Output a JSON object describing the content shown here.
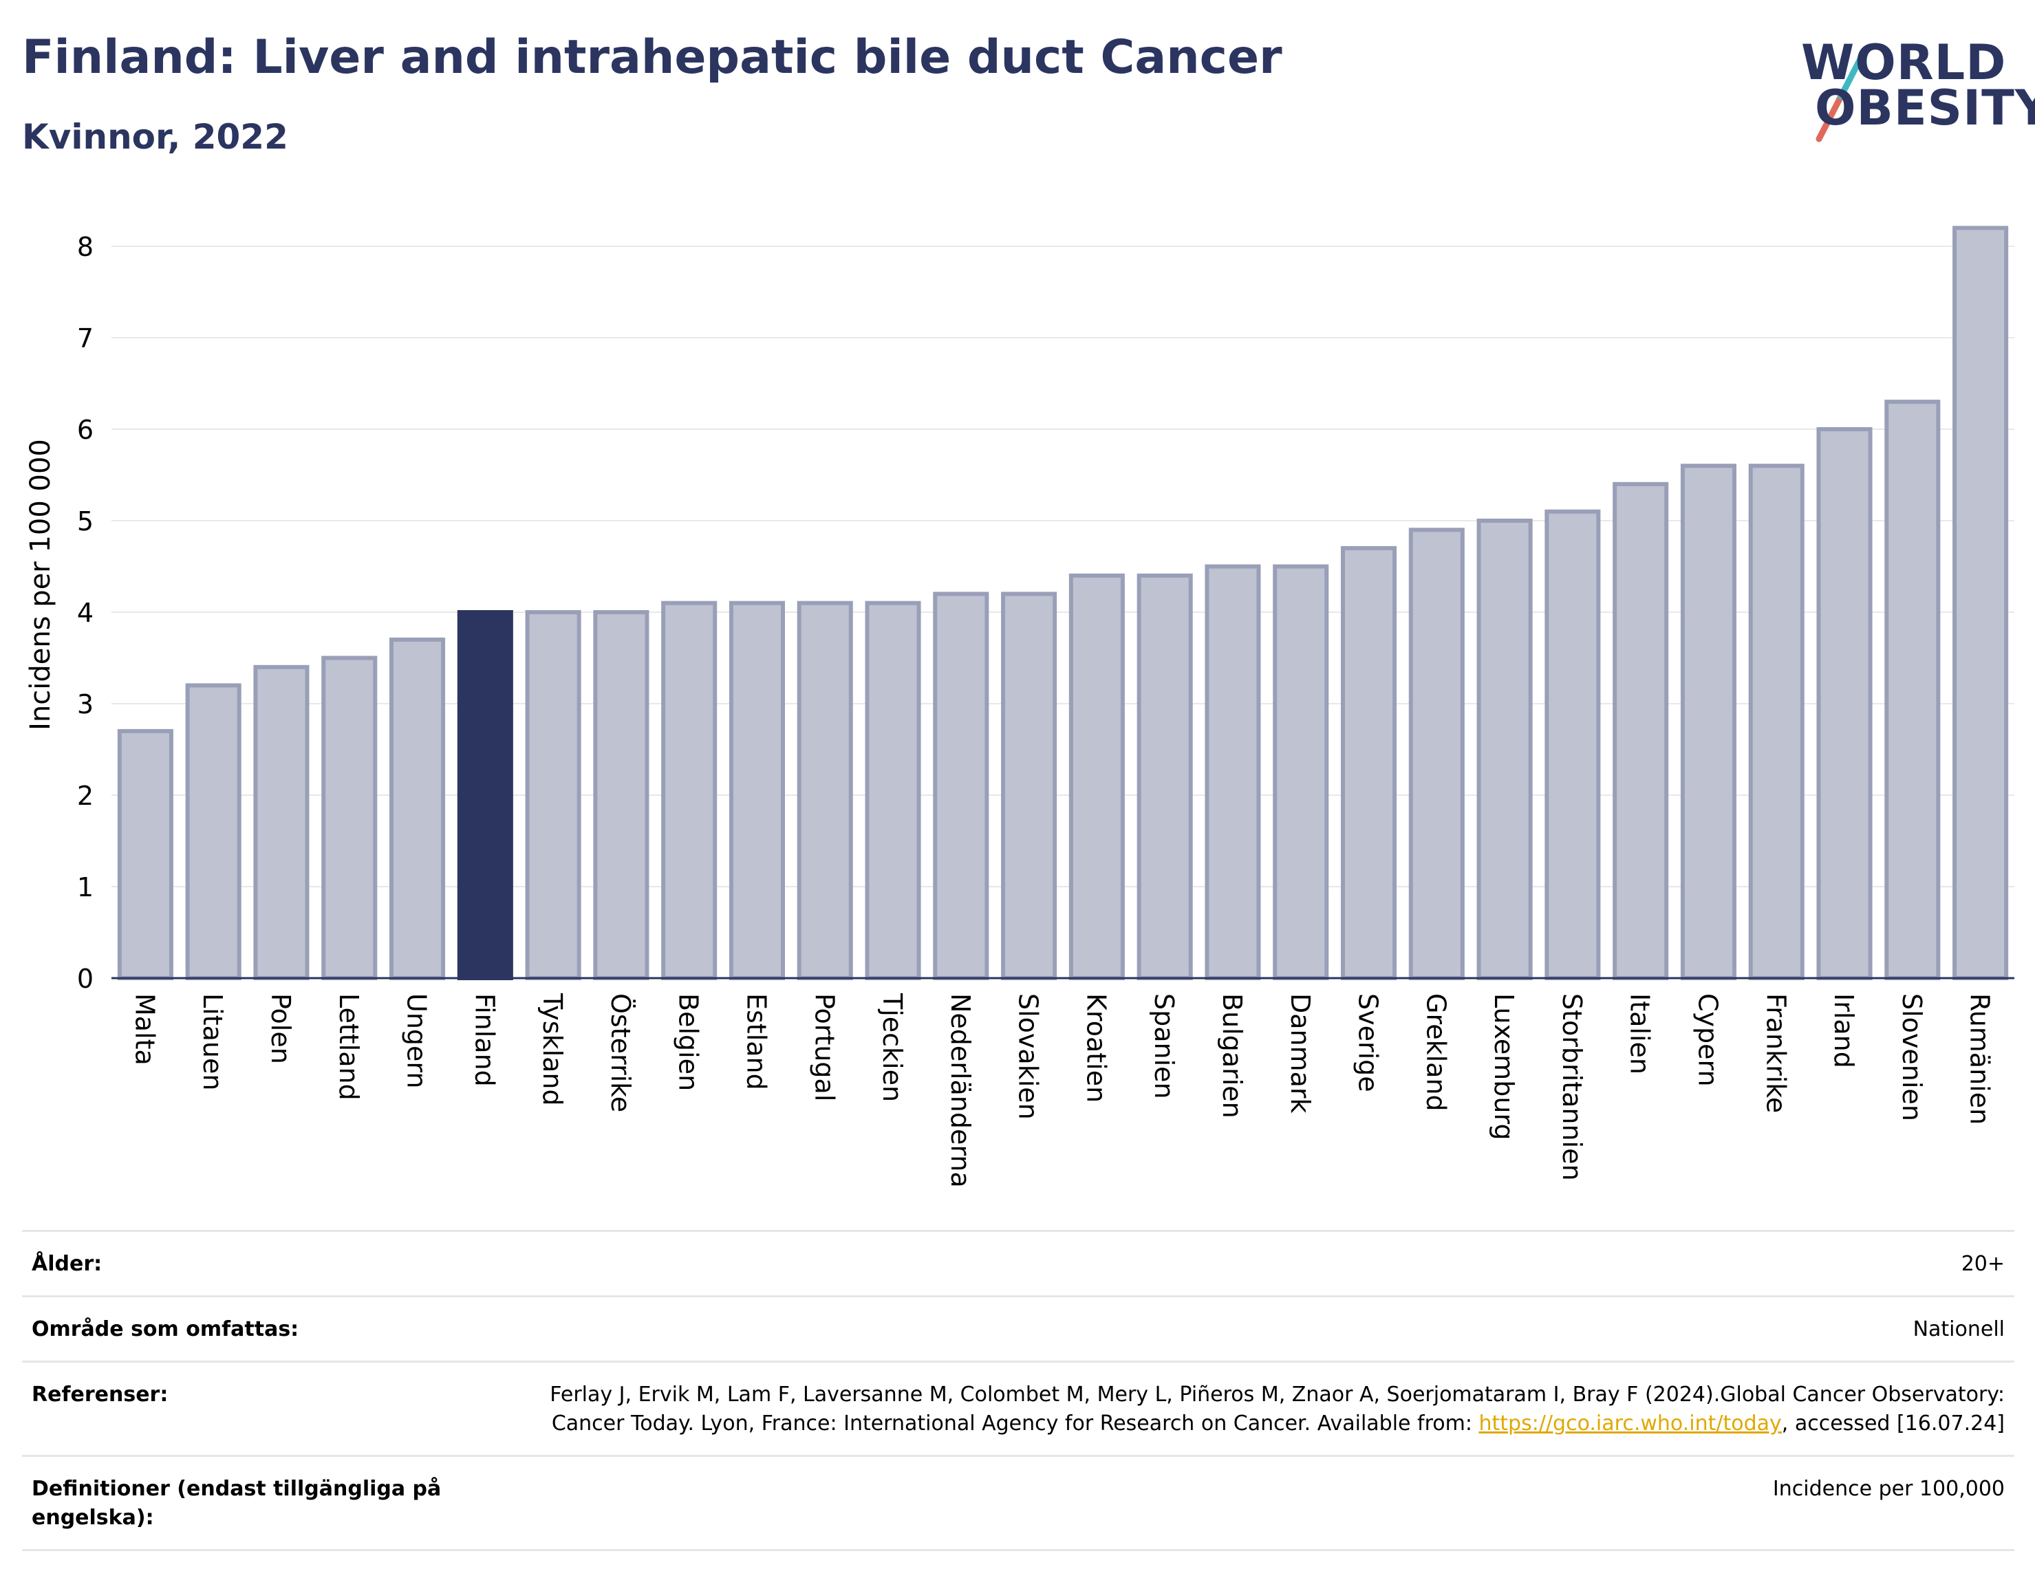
{
  "header": {
    "title": "Finland: Liver and intrahepatic bile duct Cancer",
    "subtitle": "Kvinnor, 2022"
  },
  "logo": {
    "line1": "WORLD",
    "line2": "OBESITY",
    "accent_colors": [
      "#3fb8c4",
      "#e06a5a"
    ]
  },
  "colors": {
    "highlight": "#2b3560",
    "bar_fill": "#bfc2d1",
    "bar_stroke": "#9a9fb8"
  },
  "chart_data": {
    "type": "bar",
    "title": "Finland: Liver and intrahepatic bile duct Cancer",
    "subtitle": "Kvinnor, 2022",
    "xlabel": "",
    "ylabel": "Incidens per 100 000",
    "ylim": [
      0,
      8.3
    ],
    "yticks": [
      0,
      1,
      2,
      3,
      4,
      5,
      6,
      7,
      8
    ],
    "grid": true,
    "highlight": "Finland",
    "categories": [
      "Malta",
      "Litauen",
      "Polen",
      "Lettland",
      "Ungern",
      "Finland",
      "Tyskland",
      "Österrike",
      "Belgien",
      "Estland",
      "Portugal",
      "Tjeckien",
      "Nederländerna",
      "Slovakien",
      "Kroatien",
      "Spanien",
      "Bulgarien",
      "Danmark",
      "Sverige",
      "Grekland",
      "Luxemburg",
      "Storbritannien",
      "Italien",
      "Cypern",
      "Frankrike",
      "Irland",
      "Slovenien",
      "Rumänien"
    ],
    "values": [
      2.7,
      3.2,
      3.4,
      3.5,
      3.7,
      4.0,
      4.0,
      4.0,
      4.1,
      4.1,
      4.1,
      4.1,
      4.2,
      4.2,
      4.4,
      4.4,
      4.5,
      4.5,
      4.7,
      4.9,
      5.0,
      5.1,
      5.4,
      5.6,
      5.6,
      6.0,
      6.3,
      8.2
    ]
  },
  "meta": {
    "age_label": "Ålder:",
    "age_value": "20+",
    "coverage_label": "Område som omfattas:",
    "coverage_value": "Nationell",
    "references_label": "Referenser:",
    "references_text_1": "Ferlay J, Ervik M, Lam F, Laversanne M, Colombet M, Mery L, Piñeros M, Znaor A, Soerjomataram I, Bray F (2024).Global Cancer Observatory: Cancer Today. Lyon, France: International Agency for Research on Cancer. Available from: ",
    "references_link": "https://gco.iarc.who.int/today",
    "references_text_2": ", accessed [16.07.24]",
    "definitions_label": "Definitioner (endast tillgängliga på engelska):",
    "definitions_value": "Incidence per 100,000"
  }
}
